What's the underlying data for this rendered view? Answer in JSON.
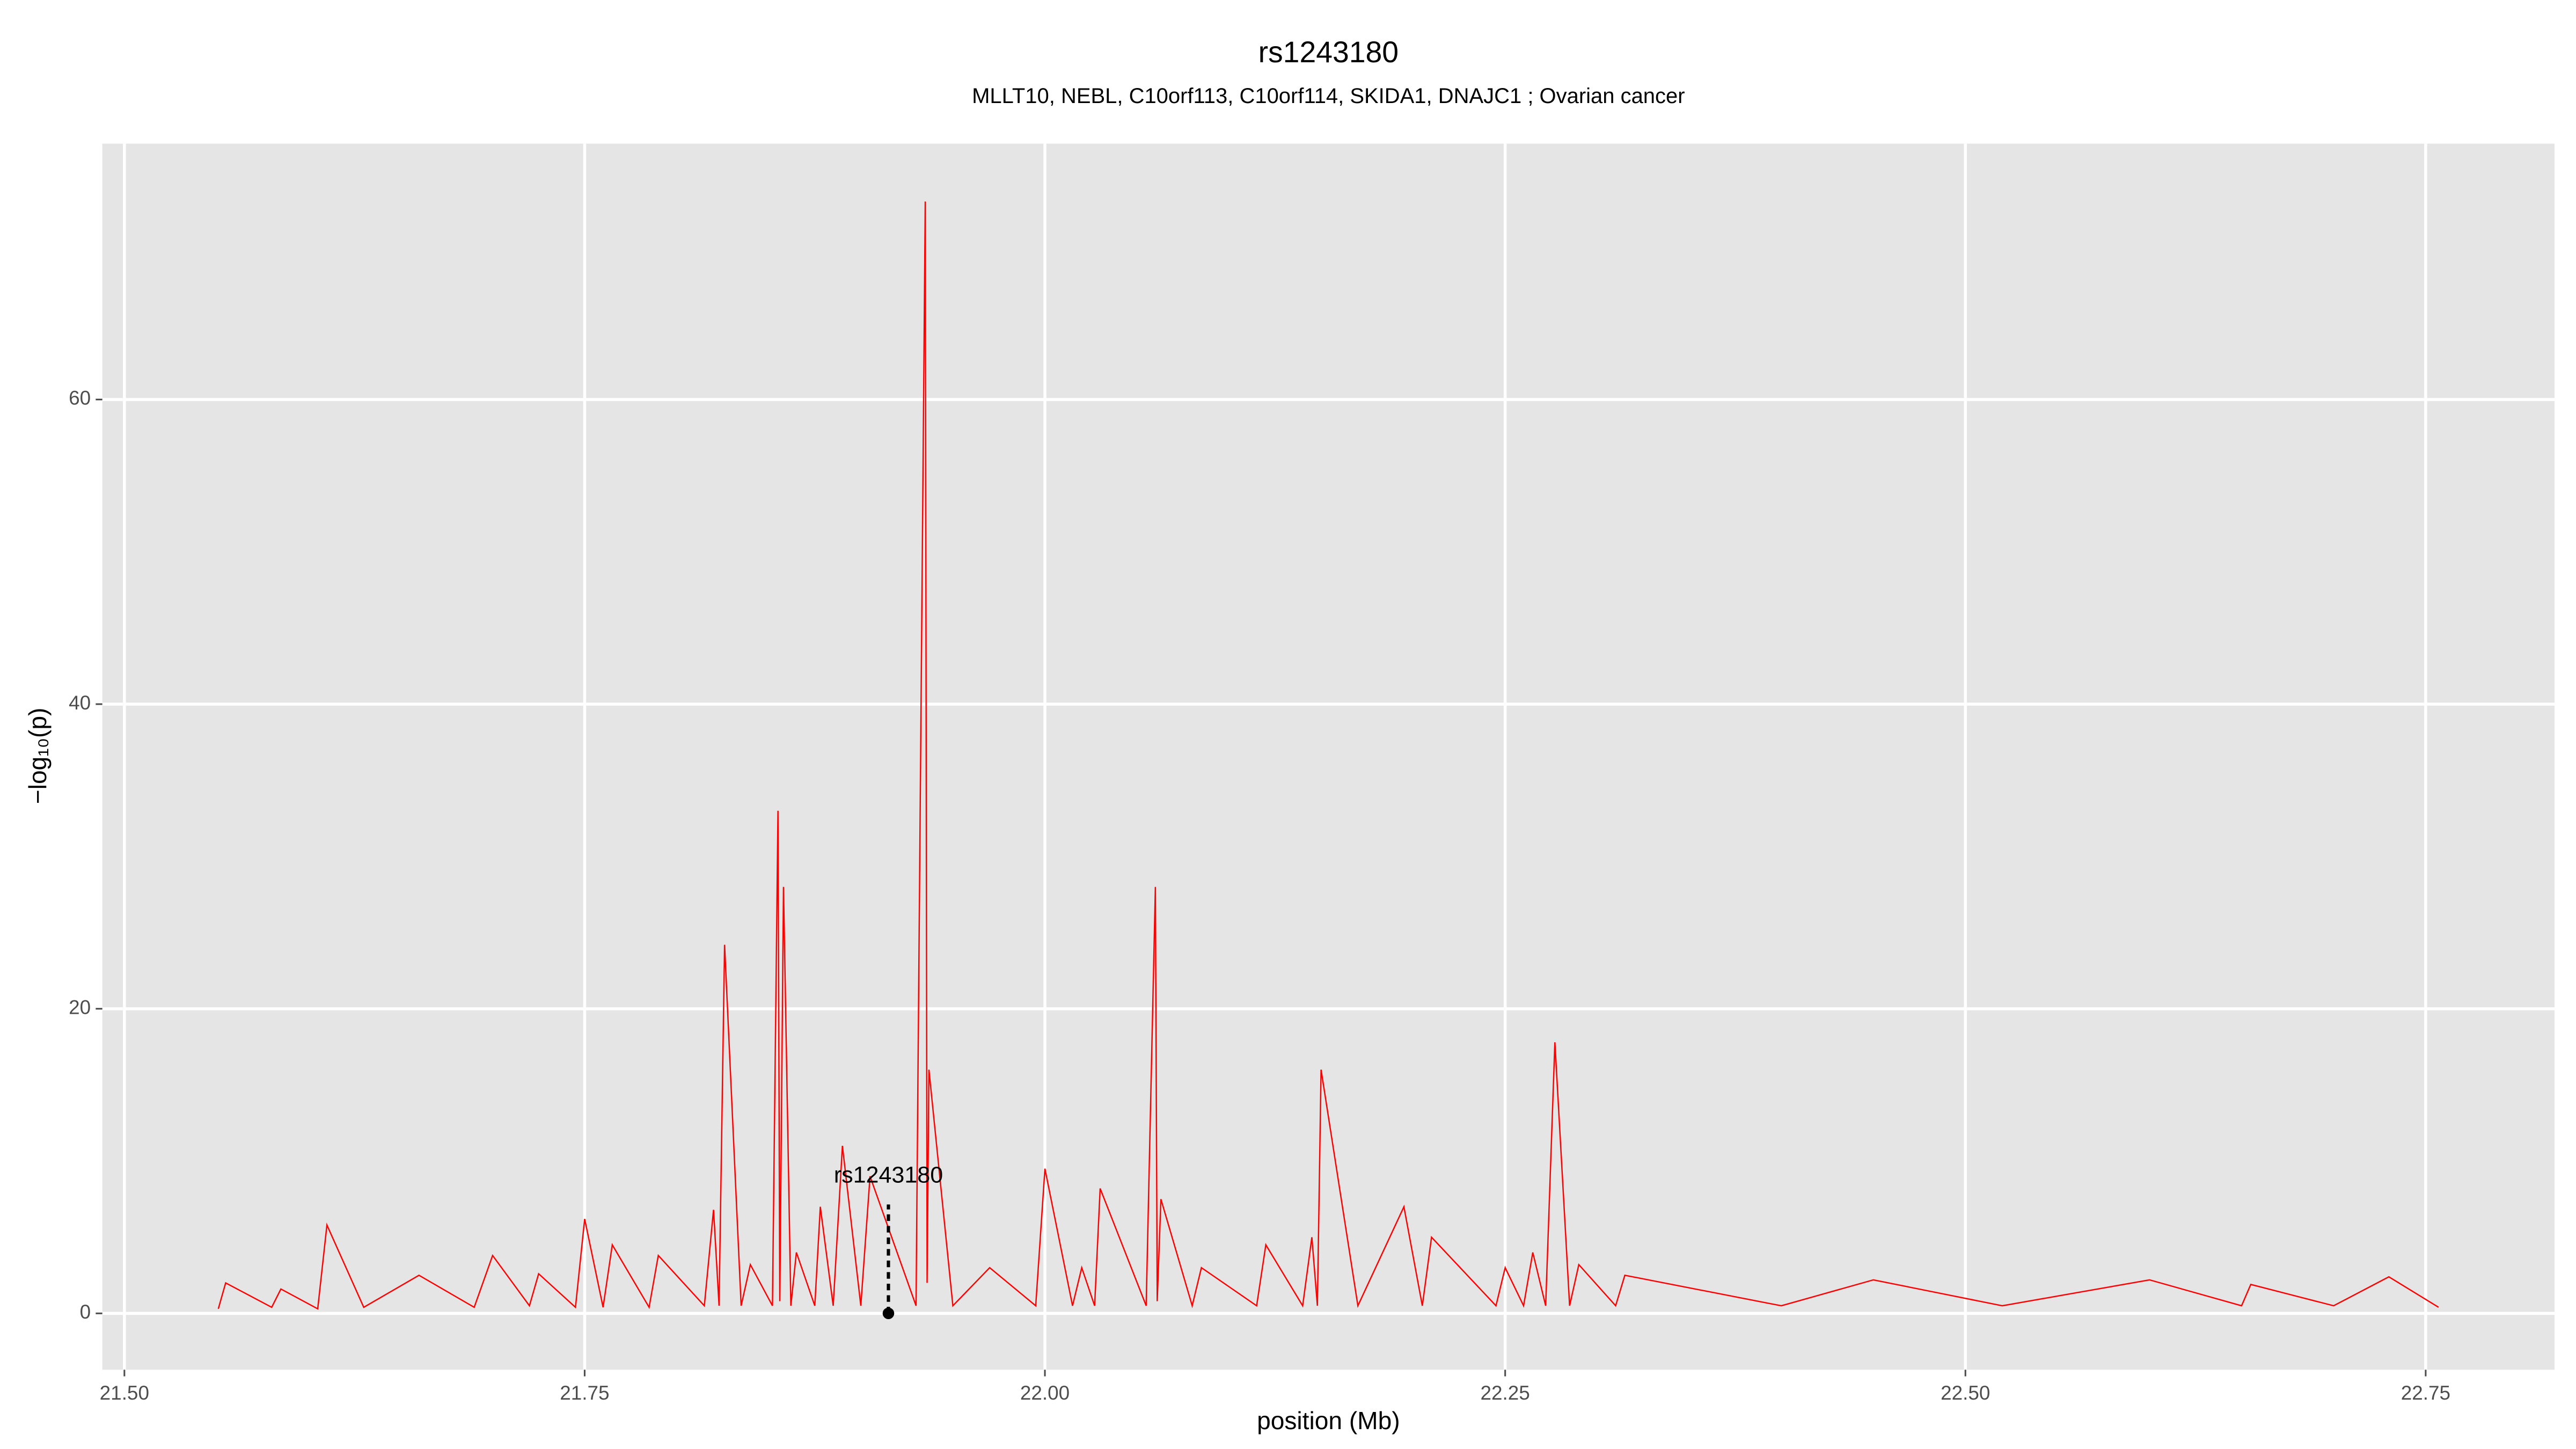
{
  "chart_data": {
    "type": "line",
    "title": "rs1243180",
    "subtitle": "MLLT10, NEBL, C10orf113, C10orf114, SKIDA1, DNAJC1 ; Ovarian cancer",
    "x_label": "position (Mb)",
    "y_label": "−log₁₀(p)",
    "annotation": {
      "label": "rs1243180",
      "x": 21.915,
      "y": 0
    },
    "x": [
      21.551,
      21.555,
      21.58,
      21.585,
      21.605,
      21.61,
      21.63,
      21.66,
      21.69,
      21.7,
      21.72,
      21.725,
      21.745,
      21.75,
      21.76,
      21.765,
      21.785,
      21.79,
      21.815,
      21.82,
      21.823,
      21.826,
      21.835,
      21.84,
      21.852,
      21.855,
      21.856,
      21.858,
      21.862,
      21.865,
      21.875,
      21.878,
      21.885,
      21.89,
      21.9,
      21.905,
      21.93,
      21.935,
      21.936,
      21.937,
      21.95,
      21.97,
      21.995,
      22.0,
      22.015,
      22.02,
      22.027,
      22.03,
      22.055,
      22.06,
      22.061,
      22.063,
      22.08,
      22.085,
      22.115,
      22.12,
      22.14,
      22.145,
      22.148,
      22.15,
      22.17,
      22.195,
      22.205,
      22.21,
      22.245,
      22.25,
      22.26,
      22.265,
      22.272,
      22.277,
      22.285,
      22.29,
      22.31,
      22.315,
      22.4,
      22.45,
      22.52,
      22.6,
      22.65,
      22.655,
      22.7,
      22.73,
      22.757
    ],
    "series": [
      {
        "name": "-log10(p)",
        "color": "#ff0000",
        "values": [
          0.3,
          2,
          0.4,
          1.6,
          0.3,
          5.8,
          0.4,
          2.5,
          0.4,
          3.8,
          0.5,
          2.6,
          0.4,
          6.2,
          0.4,
          4.5,
          0.4,
          3.8,
          0.5,
          6.8,
          0.5,
          24.2,
          0.5,
          3.2,
          0.5,
          33,
          0.8,
          28,
          0.5,
          4,
          0.5,
          7,
          0.5,
          11,
          0.5,
          9,
          0.5,
          73,
          2,
          16,
          0.5,
          3,
          0.5,
          9.5,
          0.5,
          3,
          0.5,
          8.2,
          0.5,
          28,
          0.8,
          7.5,
          0.5,
          3,
          0.5,
          4.5,
          0.5,
          5,
          0.5,
          16,
          0.5,
          7,
          0.5,
          5,
          0.5,
          3,
          0.5,
          4,
          0.5,
          17.8,
          0.5,
          3.2,
          0.5,
          2.5,
          0.5,
          2.2,
          0.5,
          2.2,
          0.5,
          1.9,
          0.5,
          2.4,
          0.4
        ]
      }
    ],
    "xlim": [
      21.488,
      22.82
    ],
    "ylim": [
      -3.7,
      76.8
    ],
    "xticks": [
      {
        "value": 21.5,
        "label": "21.50"
      },
      {
        "value": 21.75,
        "label": "21.75"
      },
      {
        "value": 22.0,
        "label": "22.00"
      },
      {
        "value": 22.25,
        "label": "22.25"
      },
      {
        "value": 22.5,
        "label": "22.50"
      },
      {
        "value": 22.75,
        "label": "22.75"
      }
    ],
    "yticks": [
      0,
      20,
      40,
      60
    ],
    "grid": true
  }
}
